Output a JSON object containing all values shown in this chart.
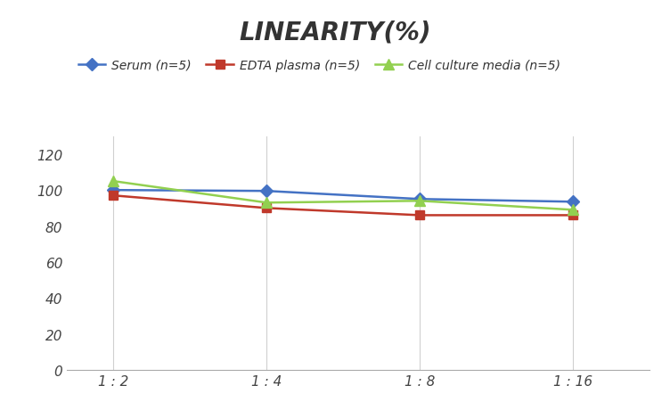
{
  "title": "LINEARITY(%)",
  "title_fontsize": 20,
  "title_fontstyle": "italic",
  "title_fontweight": "bold",
  "x_labels": [
    "1 : 2",
    "1 : 4",
    "1 : 8",
    "1 : 16"
  ],
  "x_positions": [
    0,
    1,
    2,
    3
  ],
  "series": [
    {
      "label": "Serum (n=5)",
      "values": [
        100,
        99.5,
        95,
        93.5
      ],
      "color": "#4472C4",
      "marker": "D",
      "markersize": 7,
      "linewidth": 1.8
    },
    {
      "label": "EDTA plasma (n=5)",
      "values": [
        97,
        90,
        86,
        86
      ],
      "color": "#C0392B",
      "marker": "s",
      "markersize": 7,
      "linewidth": 1.8
    },
    {
      "label": "Cell culture media (n=5)",
      "values": [
        105,
        93,
        94,
        89
      ],
      "color": "#92D050",
      "marker": "^",
      "markersize": 8,
      "linewidth": 1.8
    }
  ],
  "ylim": [
    0,
    130
  ],
  "yticks": [
    0,
    20,
    40,
    60,
    80,
    100,
    120
  ],
  "grid_color": "#D0D0D0",
  "background_color": "#FFFFFF",
  "legend_fontsize": 10,
  "tick_label_fontsize": 11
}
